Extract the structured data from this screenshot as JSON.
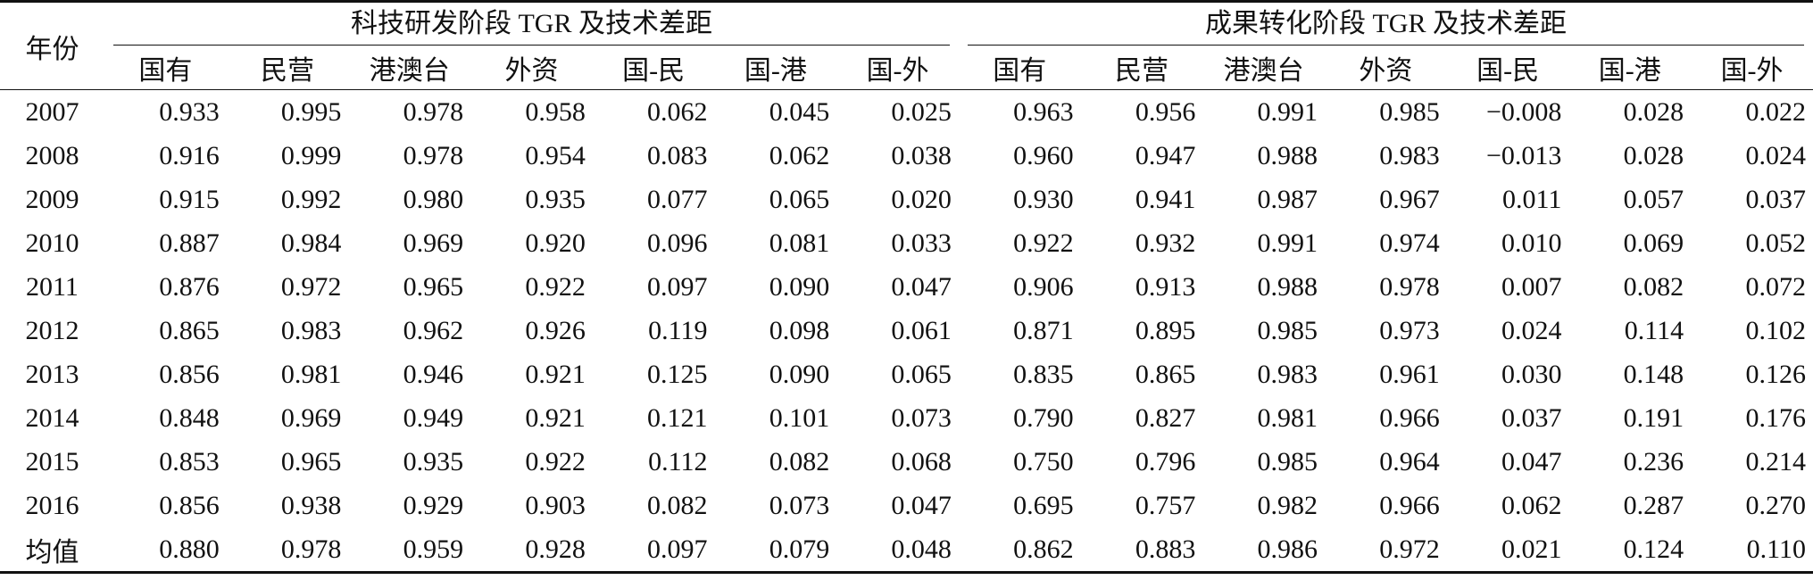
{
  "table": {
    "year_header": "年份",
    "groups": [
      {
        "title": "科技研发阶段 TGR 及技术差距",
        "columns": [
          "国有",
          "民营",
          "港澳台",
          "外资",
          "国-民",
          "国-港",
          "国-外"
        ]
      },
      {
        "title": "成果转化阶段 TGR 及技术差距",
        "columns": [
          "国有",
          "民营",
          "港澳台",
          "外资",
          "国-民",
          "国-港",
          "国-外"
        ]
      }
    ],
    "rows": [
      [
        "2007",
        "0.933",
        "0.995",
        "0.978",
        "0.958",
        "0.062",
        "0.045",
        "0.025",
        "0.963",
        "0.956",
        "0.991",
        "0.985",
        "−0.008",
        "0.028",
        "0.022"
      ],
      [
        "2008",
        "0.916",
        "0.999",
        "0.978",
        "0.954",
        "0.083",
        "0.062",
        "0.038",
        "0.960",
        "0.947",
        "0.988",
        "0.983",
        "−0.013",
        "0.028",
        "0.024"
      ],
      [
        "2009",
        "0.915",
        "0.992",
        "0.980",
        "0.935",
        "0.077",
        "0.065",
        "0.020",
        "0.930",
        "0.941",
        "0.987",
        "0.967",
        "0.011",
        "0.057",
        "0.037"
      ],
      [
        "2010",
        "0.887",
        "0.984",
        "0.969",
        "0.920",
        "0.096",
        "0.081",
        "0.033",
        "0.922",
        "0.932",
        "0.991",
        "0.974",
        "0.010",
        "0.069",
        "0.052"
      ],
      [
        "2011",
        "0.876",
        "0.972",
        "0.965",
        "0.922",
        "0.097",
        "0.090",
        "0.047",
        "0.906",
        "0.913",
        "0.988",
        "0.978",
        "0.007",
        "0.082",
        "0.072"
      ],
      [
        "2012",
        "0.865",
        "0.983",
        "0.962",
        "0.926",
        "0.119",
        "0.098",
        "0.061",
        "0.871",
        "0.895",
        "0.985",
        "0.973",
        "0.024",
        "0.114",
        "0.102"
      ],
      [
        "2013",
        "0.856",
        "0.981",
        "0.946",
        "0.921",
        "0.125",
        "0.090",
        "0.065",
        "0.835",
        "0.865",
        "0.983",
        "0.961",
        "0.030",
        "0.148",
        "0.126"
      ],
      [
        "2014",
        "0.848",
        "0.969",
        "0.949",
        "0.921",
        "0.121",
        "0.101",
        "0.073",
        "0.790",
        "0.827",
        "0.981",
        "0.966",
        "0.037",
        "0.191",
        "0.176"
      ],
      [
        "2015",
        "0.853",
        "0.965",
        "0.935",
        "0.922",
        "0.112",
        "0.082",
        "0.068",
        "0.750",
        "0.796",
        "0.985",
        "0.964",
        "0.047",
        "0.236",
        "0.214"
      ],
      [
        "2016",
        "0.856",
        "0.938",
        "0.929",
        "0.903",
        "0.082",
        "0.073",
        "0.047",
        "0.695",
        "0.757",
        "0.982",
        "0.966",
        "0.062",
        "0.287",
        "0.270"
      ],
      [
        "均值",
        "0.880",
        "0.978",
        "0.959",
        "0.928",
        "0.097",
        "0.079",
        "0.048",
        "0.862",
        "0.883",
        "0.986",
        "0.972",
        "0.021",
        "0.124",
        "0.110"
      ]
    ]
  }
}
